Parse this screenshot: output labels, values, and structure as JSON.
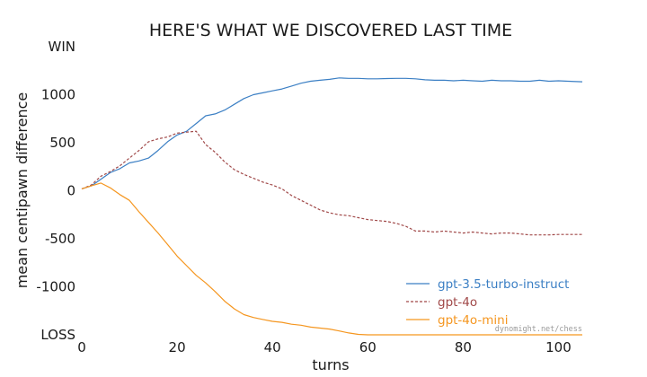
{
  "chart_data": {
    "type": "line",
    "title": "HERE'S WHAT WE DISCOVERED LAST TIME",
    "xlabel": "turns",
    "ylabel": "mean centipawn difference",
    "xlim": [
      0,
      105
    ],
    "ylim": [
      -1500,
      1500
    ],
    "xticks": [
      0,
      20,
      40,
      60,
      80,
      100
    ],
    "yticks": [
      {
        "value": 1500,
        "label": "WIN"
      },
      {
        "value": 1000,
        "label": "1000"
      },
      {
        "value": 500,
        "label": "500"
      },
      {
        "value": 0,
        "label": "0"
      },
      {
        "value": -500,
        "label": "-500"
      },
      {
        "value": -1000,
        "label": "-1000"
      },
      {
        "value": -1500,
        "label": "LOSS"
      }
    ],
    "grid": false,
    "legend_position": "bottom-right",
    "credit": "dynomight.net/chess",
    "series": [
      {
        "name": "gpt-3.5-turbo-instruct",
        "color": "#3b7fc4",
        "style": "solid",
        "x": [
          0,
          2,
          4,
          6,
          8,
          10,
          12,
          14,
          16,
          18,
          20,
          22,
          24,
          26,
          28,
          30,
          32,
          34,
          36,
          38,
          40,
          42,
          44,
          46,
          48,
          50,
          52,
          54,
          56,
          58,
          60,
          62,
          64,
          66,
          68,
          70,
          72,
          74,
          76,
          78,
          80,
          82,
          84,
          86,
          88,
          90,
          92,
          94,
          96,
          98,
          100,
          102,
          105
        ],
        "y": [
          20,
          50,
          120,
          190,
          230,
          290,
          310,
          340,
          420,
          510,
          580,
          620,
          700,
          780,
          800,
          840,
          900,
          960,
          1000,
          1020,
          1040,
          1060,
          1090,
          1120,
          1140,
          1150,
          1160,
          1175,
          1170,
          1170,
          1165,
          1165,
          1168,
          1170,
          1170,
          1165,
          1155,
          1150,
          1150,
          1145,
          1150,
          1145,
          1140,
          1150,
          1145,
          1145,
          1140,
          1140,
          1150,
          1140,
          1145,
          1140,
          1135
        ]
      },
      {
        "name": "gpt-4o",
        "color": "#a04848",
        "style": "dashed",
        "x": [
          0,
          2,
          4,
          6,
          8,
          10,
          12,
          14,
          16,
          18,
          20,
          22,
          24,
          26,
          28,
          30,
          32,
          34,
          36,
          38,
          40,
          42,
          44,
          46,
          48,
          50,
          52,
          54,
          56,
          58,
          60,
          62,
          64,
          66,
          68,
          70,
          72,
          74,
          76,
          78,
          80,
          82,
          84,
          86,
          88,
          90,
          92,
          94,
          96,
          98,
          100,
          102,
          105
        ],
        "y": [
          20,
          60,
          150,
          200,
          260,
          340,
          420,
          510,
          540,
          560,
          600,
          610,
          620,
          480,
          400,
          300,
          220,
          170,
          130,
          90,
          60,
          20,
          -50,
          -100,
          -150,
          -200,
          -230,
          -250,
          -260,
          -280,
          -300,
          -310,
          -320,
          -340,
          -370,
          -420,
          -420,
          -430,
          -420,
          -430,
          -440,
          -430,
          -440,
          -450,
          -440,
          -440,
          -450,
          -460,
          -460,
          -460,
          -455,
          -455,
          -455
        ]
      },
      {
        "name": "gpt-4o-mini",
        "color": "#f5961f",
        "style": "solid",
        "x": [
          0,
          2,
          4,
          6,
          8,
          10,
          12,
          14,
          16,
          18,
          20,
          22,
          24,
          26,
          28,
          30,
          32,
          34,
          36,
          38,
          40,
          42,
          44,
          46,
          48,
          50,
          52,
          54,
          56,
          58,
          60,
          62,
          64,
          66,
          68,
          70,
          72,
          74,
          76,
          78,
          80,
          82,
          84,
          86,
          88,
          90,
          92,
          94,
          96,
          98,
          100,
          102,
          105
        ],
        "y": [
          20,
          50,
          80,
          30,
          -40,
          -100,
          -220,
          -330,
          -440,
          -560,
          -680,
          -780,
          -880,
          -960,
          -1050,
          -1150,
          -1230,
          -1290,
          -1320,
          -1340,
          -1360,
          -1370,
          -1390,
          -1400,
          -1420,
          -1430,
          -1440,
          -1460,
          -1480,
          -1495,
          -1500,
          -1500,
          -1500,
          -1500,
          -1500,
          -1500,
          -1500,
          -1500,
          -1500,
          -1500,
          -1500,
          -1500,
          -1500,
          -1500,
          -1500,
          -1500,
          -1500,
          -1500,
          -1500,
          -1500,
          -1500,
          -1500,
          -1500
        ]
      }
    ]
  }
}
